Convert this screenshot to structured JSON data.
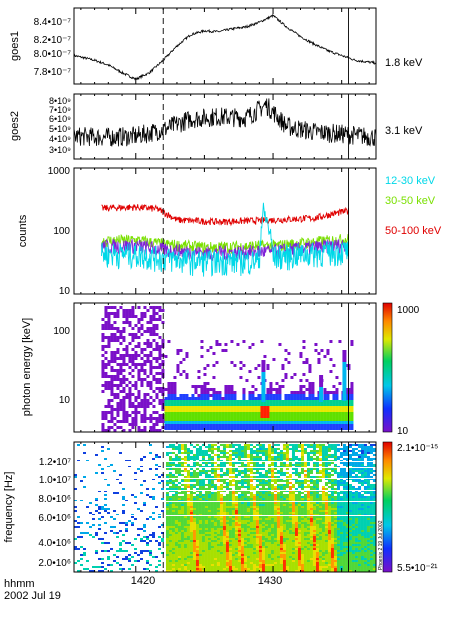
{
  "colors": {
    "goes": "#000000",
    "c_12_30": "#00d8e8",
    "c_30_50": "#7ae000",
    "c_50_100": "#e00000",
    "c_low": "#7f22d8",
    "dashed_marker": "#000000"
  },
  "panels": {
    "goes1": {
      "ylabel": "goes1",
      "energy": "1.8 keV",
      "ticks": [
        "8.4•10⁻⁷",
        "8.2•10⁻⁷",
        "8.0•10⁻⁷",
        "7.8•10⁻⁷"
      ]
    },
    "goes2": {
      "ylabel": "goes2",
      "energy": "3.1 keV",
      "ticks": [
        "8•10⁹",
        "7•10⁹",
        "6•10⁹",
        "5•10⁹",
        "4•10⁹",
        "3•10⁹"
      ]
    },
    "counts": {
      "ylabel": "counts",
      "ticks": [
        "1000",
        "100",
        "10"
      ],
      "legend": [
        "12-30 keV",
        "30-50 keV",
        "50-100 keV"
      ]
    },
    "spec": {
      "ylabel": "photon energy [keV]",
      "ticks": [
        "100",
        "10"
      ],
      "cbar_max": "1000",
      "cbar_min": "10"
    },
    "radio": {
      "ylabel": "frequency [Hz]",
      "ticks": [
        "1.2•10⁷",
        "1.0•10⁷",
        "8.0•10⁶",
        "6.0•10⁶",
        "4.0•10⁶",
        "2.0•10⁶"
      ],
      "cbar_max": "2.1•10⁻¹⁵",
      "cbar_min": "5.5•10⁻²¹",
      "side_text": "Phoenix 2 19 Jul 2002"
    }
  },
  "xaxis": {
    "ticks": [
      "1420",
      "1430"
    ],
    "unit": "hhmm",
    "date": "2002 Jul 19"
  },
  "chart_data": [
    {
      "type": "line",
      "name": "goes1",
      "x": [
        1415.5,
        1417,
        1418,
        1419,
        1420,
        1421,
        1422,
        1423,
        1424,
        1425,
        1426,
        1427,
        1428,
        1429,
        1430,
        1431,
        1432,
        1433,
        1434,
        1435,
        1436,
        1437.5
      ],
      "y": [
        8e-07,
        7.95e-07,
        7.9e-07,
        7.82e-07,
        7.75e-07,
        7.82e-07,
        7.95e-07,
        8.1e-07,
        8.22e-07,
        8.26e-07,
        8.25e-07,
        8.28e-07,
        8.3e-07,
        8.35e-07,
        8.42e-07,
        8.3e-07,
        8.2e-07,
        8.12e-07,
        8.05e-07,
        8e-07,
        7.95e-07,
        7.92e-07
      ],
      "ylim": [
        7.7e-07,
        8.5e-07
      ]
    },
    {
      "type": "line",
      "name": "goes2",
      "x": [
        1415.5,
        1418,
        1420,
        1422,
        1424,
        1426,
        1428,
        1429.5,
        1431,
        1433,
        1435,
        1437.5
      ],
      "y": [
        4600000000.0,
        4500000000.0,
        4600000000.0,
        5200000000.0,
        6200000000.0,
        6400000000.0,
        6300000000.0,
        7500000000.0,
        5500000000.0,
        5000000000.0,
        4800000000.0,
        4500000000.0
      ],
      "ylim": [
        2500000000.0,
        8500000000.0
      ]
    },
    {
      "type": "line",
      "series": [
        {
          "name": "12-30 keV",
          "x": [
            1417.5,
            1420,
            1422,
            1425,
            1429,
            1429.3,
            1430,
            1435.5
          ],
          "y": [
            45,
            44,
            38,
            34,
            35,
            200,
            40,
            50
          ]
        },
        {
          "name": "30-50 keV",
          "x": [
            1417.5,
            1420,
            1422,
            1425,
            1429,
            1430,
            1435.5
          ],
          "y": [
            70,
            72,
            62,
            55,
            58,
            58,
            75
          ]
        },
        {
          "name": "50-100 keV",
          "x": [
            1417.5,
            1420,
            1421.5,
            1423,
            1426,
            1430,
            1433,
            1435.5
          ],
          "y": [
            230,
            240,
            225,
            150,
            140,
            150,
            160,
            210
          ]
        }
      ],
      "ylim": [
        10,
        1000
      ],
      "yscale": "log"
    },
    {
      "type": "heatmap",
      "name": "photon energy spectrogram",
      "ylim": [
        3,
        250
      ],
      "yscale": "log",
      "zlim": [
        10,
        1000
      ]
    },
    {
      "type": "heatmap",
      "name": "radio dynamic spectrum",
      "ylim": [
        1000000.0,
        14000000.0
      ],
      "zlim": [
        5.5e-21,
        2.1e-15
      ]
    }
  ],
  "markers": {
    "dashed_time": 1422,
    "solid_time": 1435.5
  },
  "xrange": [
    1415.5,
    1437.5
  ]
}
